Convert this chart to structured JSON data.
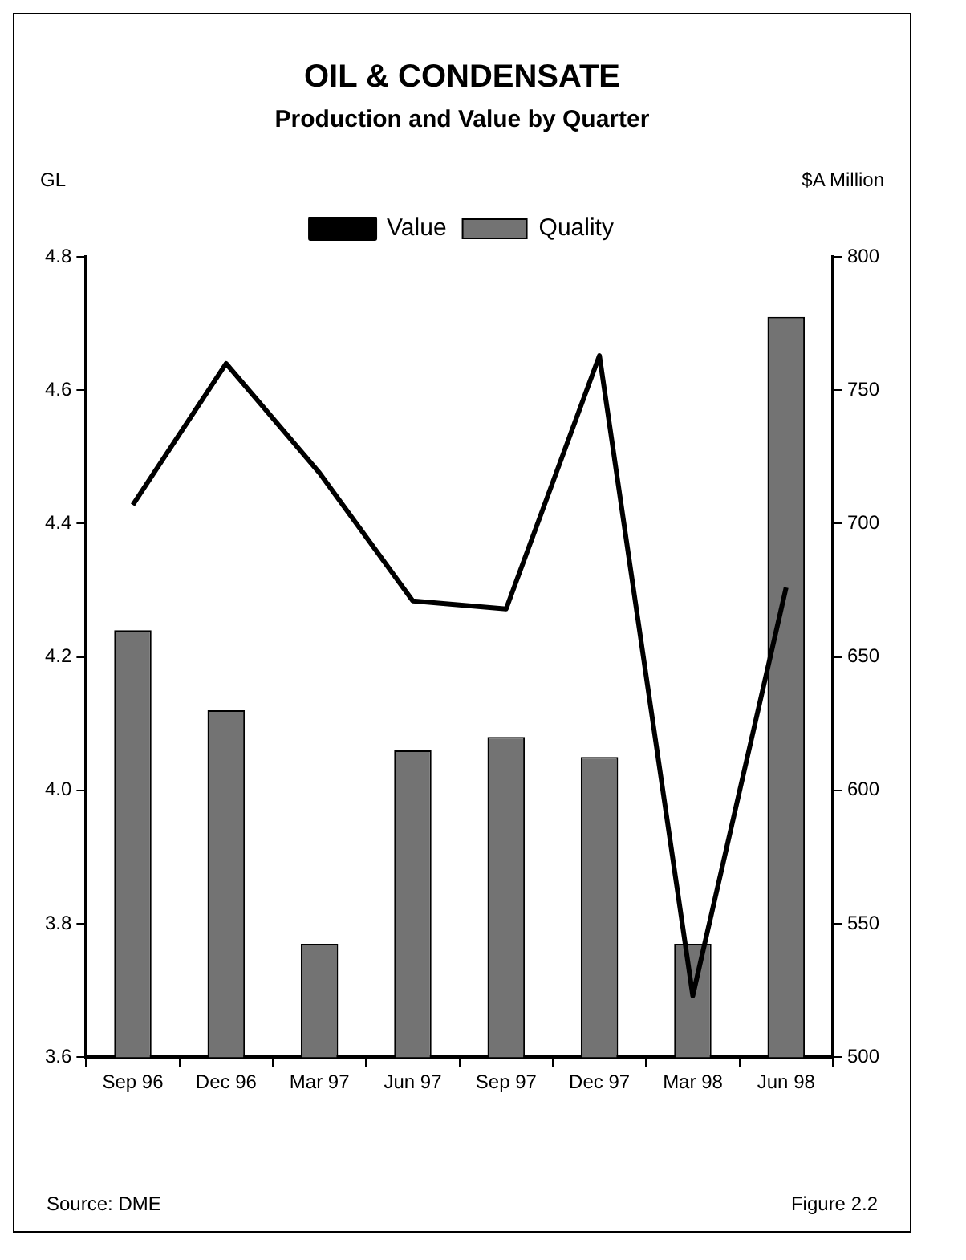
{
  "chart_data": {
    "type": "bar",
    "title": "OIL & CONDENSATE",
    "subtitle": "Production and Value by Quarter",
    "ylabel": "GL",
    "y2label": "$A Million",
    "categories": [
      "Sep 96",
      "Dec 96",
      "Mar 97",
      "Jun 97",
      "Sep 97",
      "Dec 97",
      "Mar 98",
      "Jun 98"
    ],
    "series": [
      {
        "name": "Quality",
        "color": "#737373",
        "values": [
          4.24,
          4.12,
          3.77,
          4.06,
          4.08,
          4.05,
          3.77,
          4.71
        ]
      },
      {
        "name": "Value",
        "type": "line",
        "axis": "y2",
        "color": "#000000",
        "values": [
          707,
          760,
          719,
          671,
          668,
          763,
          523,
          676
        ]
      }
    ],
    "ylim": [
      3.6,
      4.8
    ],
    "yticks": [
      {
        "value": 3.6,
        "label": "3.6"
      },
      {
        "value": 3.8,
        "label": "3.8"
      },
      {
        "value": 4.0,
        "label": "4.0"
      },
      {
        "value": 4.2,
        "label": "4.2"
      },
      {
        "value": 4.4,
        "label": "4.4"
      },
      {
        "value": 4.6,
        "label": "4.6"
      },
      {
        "value": 4.8,
        "label": "4.8"
      }
    ],
    "y2lim": [
      500,
      800
    ],
    "y2ticks": [
      500,
      550,
      600,
      650,
      700,
      750,
      800
    ],
    "grid": false,
    "legend": "top",
    "marker": "none",
    "line_style": "solid",
    "annotations": [
      "Source: DME",
      "Figure 2.2"
    ]
  }
}
